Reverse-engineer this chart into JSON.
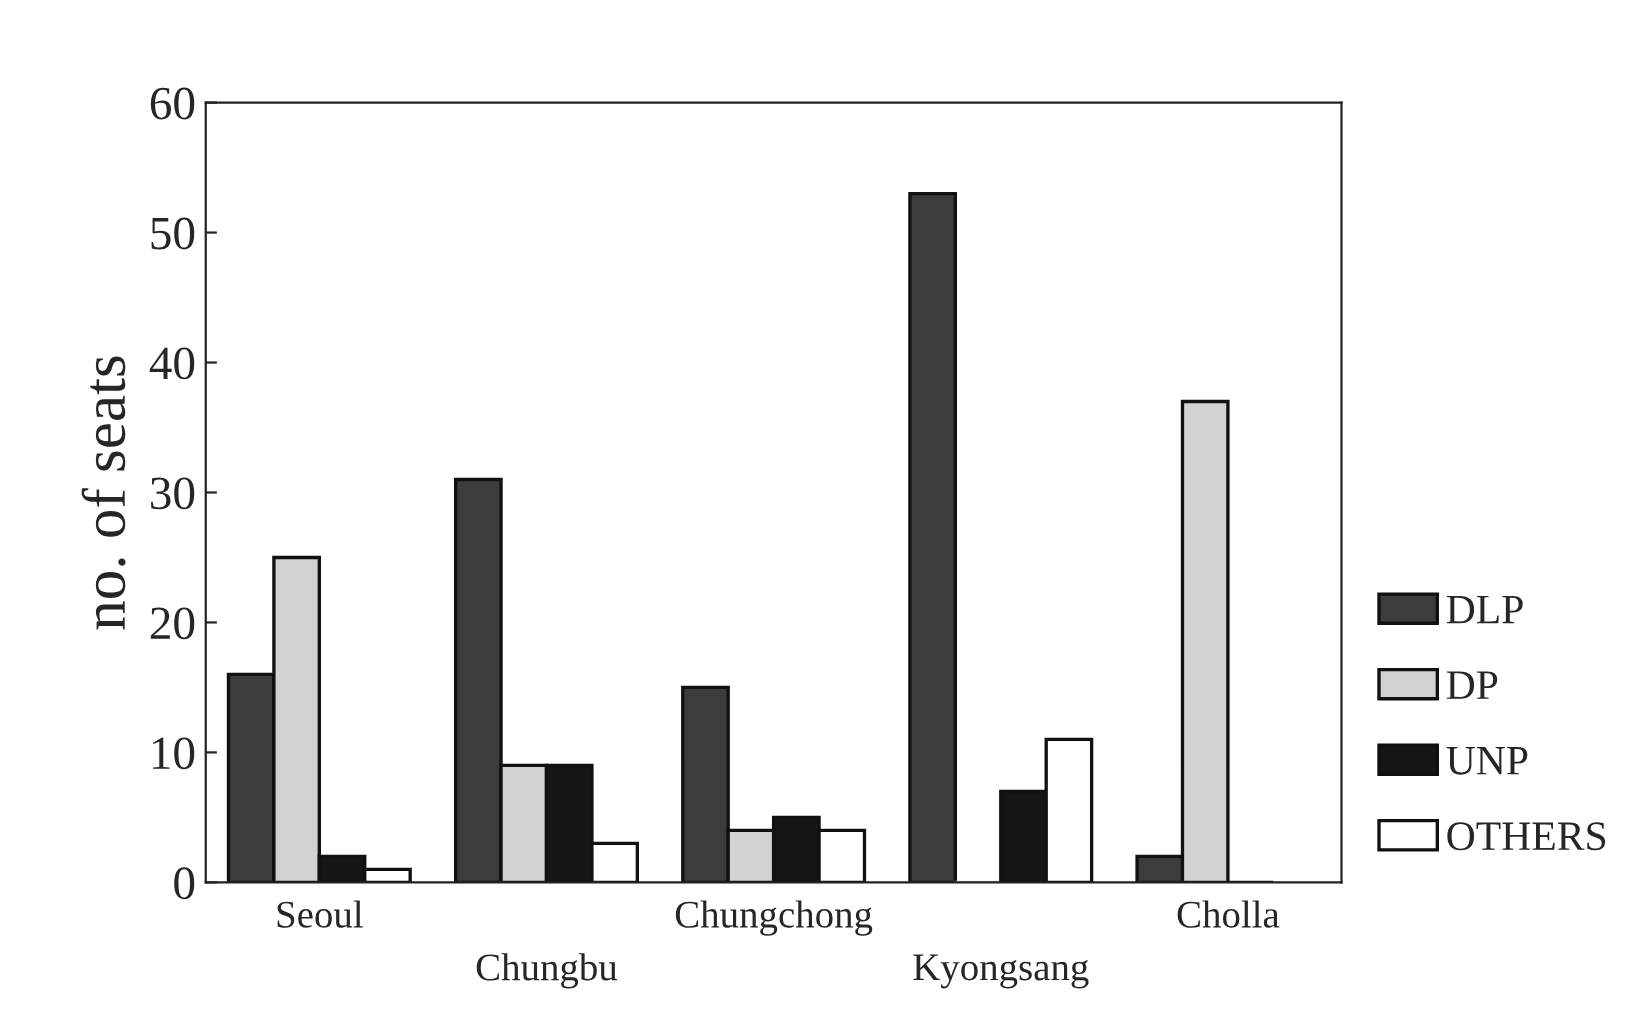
{
  "chart_data": {
    "type": "bar",
    "ylabel": "no. of seats",
    "categories": [
      "Seoul",
      "Chungbu",
      "Chungchong",
      "Kyongsang",
      "Cholla"
    ],
    "series": [
      {
        "name": "DLP",
        "color": "#3c3c3c",
        "values": [
          16,
          31,
          15,
          53,
          2
        ]
      },
      {
        "name": "DP",
        "color": "#d2d2d2",
        "values": [
          25,
          9,
          4,
          0,
          37
        ]
      },
      {
        "name": "UNP",
        "color": "#151515",
        "values": [
          2,
          9,
          5,
          7,
          0
        ]
      },
      {
        "name": "OTHERS",
        "color": "#ffffff",
        "values": [
          1,
          3,
          4,
          11,
          0
        ]
      }
    ],
    "ylim": [
      0,
      60
    ],
    "yticks": [
      0,
      10,
      20,
      30,
      40,
      50,
      60
    ],
    "grid": false,
    "legend": "right"
  }
}
